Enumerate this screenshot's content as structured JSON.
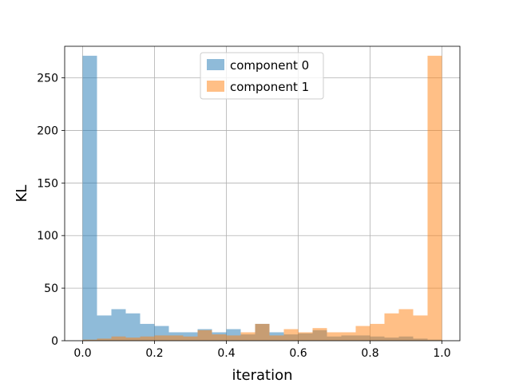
{
  "chart_data": {
    "type": "bar",
    "title": "",
    "xlabel": "iteration",
    "ylabel": "KL",
    "xlim": [
      -0.05,
      1.05
    ],
    "ylim": [
      0,
      280
    ],
    "xticks": [
      0.0,
      0.2,
      0.4,
      0.6,
      0.8,
      1.0
    ],
    "xtick_labels": [
      "0.0",
      "0.2",
      "0.4",
      "0.6",
      "0.8",
      "1.0"
    ],
    "yticks": [
      0,
      50,
      100,
      150,
      200,
      250
    ],
    "ytick_labels": [
      "0",
      "50",
      "100",
      "150",
      "200",
      "250"
    ],
    "grid": true,
    "legend_position": "top-center",
    "bin_edges": [
      0.0,
      0.04,
      0.08,
      0.12,
      0.16,
      0.2,
      0.24,
      0.28,
      0.32,
      0.36,
      0.4,
      0.44,
      0.48,
      0.52,
      0.56,
      0.6,
      0.64,
      0.68,
      0.72,
      0.76,
      0.8,
      0.84,
      0.88,
      0.92,
      0.96,
      1.0
    ],
    "series": [
      {
        "name": "component 0",
        "color": "#1f77b4",
        "alpha": 0.5,
        "values": [
          271,
          24,
          30,
          26,
          16,
          14,
          8,
          8,
          11,
          8,
          11,
          6,
          16,
          8,
          6,
          7,
          10,
          4,
          5,
          5,
          4,
          3,
          4,
          2,
          1
        ]
      },
      {
        "name": "component 1",
        "color": "#ff7f0e",
        "alpha": 0.5,
        "values": [
          1,
          2,
          4,
          3,
          4,
          5,
          5,
          4,
          10,
          6,
          5,
          8,
          16,
          5,
          11,
          8,
          12,
          8,
          8,
          14,
          16,
          26,
          30,
          24,
          271
        ]
      }
    ]
  }
}
